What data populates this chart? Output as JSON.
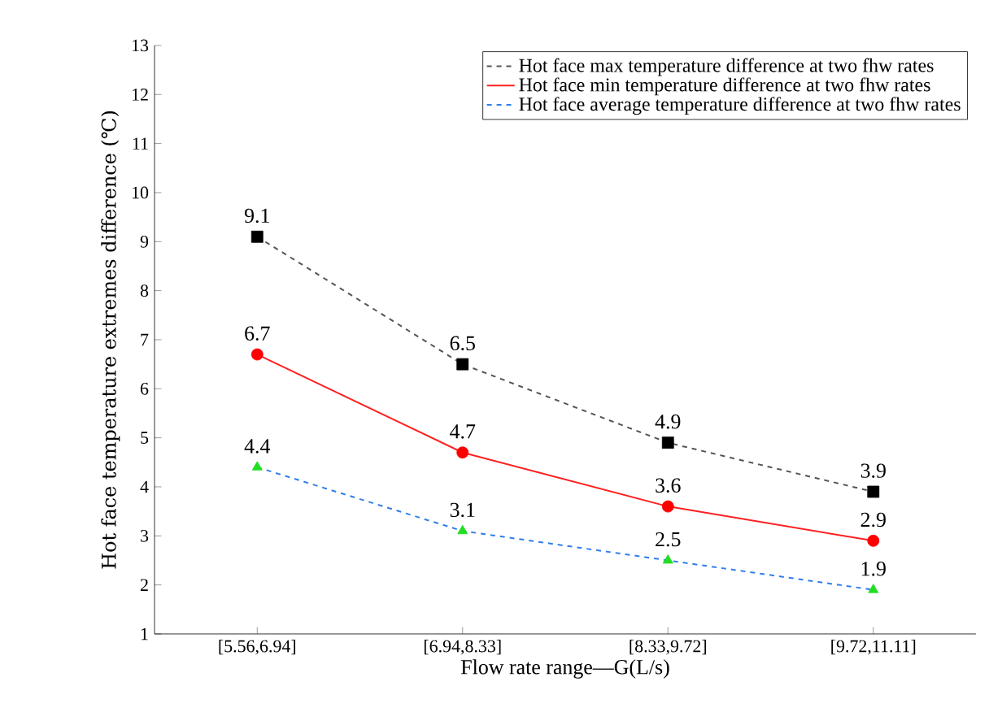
{
  "chart_data": {
    "type": "line",
    "xlabel": "Flow rate range—G(L/s)",
    "ylabel": "Hot face temperature extremes difference (℃)",
    "categories": [
      "[5.56,6.94]",
      "[6.94,8.33]",
      "[8.33,9.72]",
      "[9.72,11.11]"
    ],
    "ylim": [
      1,
      13
    ],
    "yticks": [
      1,
      2,
      3,
      4,
      5,
      6,
      7,
      8,
      9,
      10,
      11,
      12,
      13
    ],
    "series": [
      {
        "name": "Hot face max temperature difference at two fhw rates",
        "color": "#555555",
        "colors": [
          "#000000",
          "#000000",
          "#000000",
          "#000000"
        ],
        "marker": "square",
        "line_style": "dashed",
        "values": [
          9.1,
          6.5,
          4.9,
          3.9
        ]
      },
      {
        "name": "Hot face min temperature difference at two fhw rates",
        "color": "#ff2020",
        "colors": [
          "#ff0000",
          "#ff0000",
          "#ff0000",
          "#ff0000"
        ],
        "marker": "circle",
        "line_style": "solid",
        "values": [
          6.7,
          4.7,
          3.6,
          2.9
        ]
      },
      {
        "name": "Hot face average temperature difference at two fhw rates",
        "color": "#2f7fe8",
        "colors": [
          "#22dd22",
          "#22dd22",
          "#22dd22",
          "#22dd22"
        ],
        "marker": "triangle",
        "line_style": "dashed",
        "values": [
          4.4,
          3.1,
          2.5,
          1.9
        ]
      }
    ],
    "data_labels": true,
    "legend": "top right",
    "grid": false
  }
}
